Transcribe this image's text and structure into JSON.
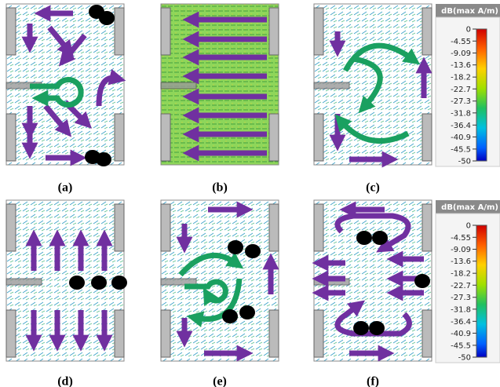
{
  "panels": [
    {
      "label": "(a)"
    },
    {
      "label": "(b)"
    },
    {
      "label": "(c)"
    },
    {
      "label": "(d)"
    },
    {
      "label": "(e)"
    },
    {
      "label": "(f)"
    }
  ],
  "colorbars": [
    {
      "title": "dB(max A/m)",
      "ticks": [
        0,
        -4.55,
        -9.09,
        -13.6,
        -18.2,
        -22.7,
        -27.3,
        -31.8,
        -36.4,
        -40.9,
        -45.5,
        -50
      ]
    },
    {
      "title": "dB(max A/m)",
      "ticks": [
        0,
        -4.55,
        -9.09,
        -13.6,
        -18.2,
        -22.7,
        -27.3,
        -31.8,
        -36.4,
        -40.9,
        -45.5,
        -50
      ]
    }
  ]
}
